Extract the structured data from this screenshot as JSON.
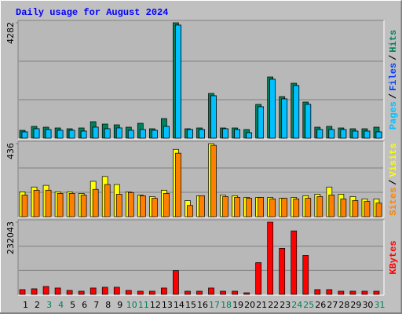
{
  "title": "Daily usage for August 2024",
  "legend_separator": "/",
  "chart_data": [
    {
      "type": "bar",
      "ylim": [
        0,
        4282
      ],
      "yticks": [
        4282
      ],
      "grid_divisions": 3,
      "series": [
        {
          "name": "Hits",
          "color": "#00805c",
          "values": [
            291,
            437,
            408,
            379,
            350,
            379,
            612,
            524,
            495,
            408,
            553,
            350,
            728,
            4282,
            350,
            379,
            1660,
            379,
            379,
            320,
            1253,
            2272,
            1544,
            2039,
            1340,
            408,
            437,
            379,
            350,
            350,
            408
          ]
        },
        {
          "name": "Files",
          "color": "#0040ff",
          "values": [
            233,
            350,
            320,
            291,
            291,
            262,
            408,
            350,
            379,
            291,
            320,
            291,
            437,
            4195,
            320,
            320,
            1573,
            350,
            320,
            204,
            1165,
            2185,
            1457,
            1952,
            1253,
            320,
            320,
            320,
            262,
            262,
            233
          ]
        },
        {
          "name": "Pages",
          "color": "#00c0ff",
          "values": [
            233,
            350,
            320,
            291,
            291,
            262,
            408,
            350,
            379,
            291,
            320,
            291,
            437,
            4195,
            320,
            320,
            1573,
            350,
            320,
            204,
            1165,
            2185,
            1457,
            1952,
            1253,
            320,
            320,
            320,
            262,
            262,
            233
          ]
        }
      ]
    },
    {
      "type": "bar",
      "ylim": [
        0,
        436
      ],
      "yticks": [
        436
      ],
      "grid_divisions": 3,
      "series": [
        {
          "name": "Visits",
          "color": "#ffff00",
          "values": [
            148,
            177,
            187,
            148,
            148,
            139,
            211,
            240,
            192,
            148,
            129,
            120,
            158,
            402,
            96,
            125,
            436,
            129,
            125,
            115,
            115,
            115,
            110,
            115,
            125,
            134,
            177,
            134,
            120,
            106,
            106
          ]
        },
        {
          "name": "Sites",
          "color": "#ff8000",
          "values": [
            129,
            158,
            158,
            139,
            139,
            129,
            163,
            192,
            134,
            144,
            125,
            110,
            139,
            379,
            67,
            125,
            426,
            120,
            115,
            110,
            115,
            106,
            110,
            106,
            110,
            120,
            129,
            106,
            96,
            91,
            81
          ]
        }
      ]
    },
    {
      "type": "bar",
      "ylim": [
        0,
        232043
      ],
      "yticks": [
        232043
      ],
      "grid_divisions": 3,
      "categories": [
        "1",
        "2",
        "3",
        "4",
        "5",
        "6",
        "7",
        "8",
        "9",
        "10",
        "11",
        "12",
        "13",
        "14",
        "15",
        "16",
        "17",
        "18",
        "19",
        "20",
        "21",
        "22",
        "23",
        "24",
        "25",
        "26",
        "27",
        "28",
        "29",
        "30",
        "31"
      ],
      "category_colors": [
        "#000000",
        "#000000",
        "#00805c",
        "#00805c",
        "#000000",
        "#000000",
        "#000000",
        "#000000",
        "#000000",
        "#00805c",
        "#00805c",
        "#000000",
        "#000000",
        "#000000",
        "#000000",
        "#000000",
        "#00805c",
        "#00805c",
        "#000000",
        "#000000",
        "#000000",
        "#000000",
        "#000000",
        "#00805c",
        "#00805c",
        "#000000",
        "#000000",
        "#000000",
        "#000000",
        "#000000",
        "#00805c"
      ],
      "series": [
        {
          "name": "KBytes",
          "color": "#ff0000",
          "values": [
            15300,
            17850,
            25500,
            20400,
            12750,
            10200,
            20400,
            22950,
            22950,
            12750,
            10200,
            10200,
            20400,
            76500,
            10200,
            10200,
            20400,
            10200,
            10200,
            5100,
            102000,
            232043,
            147900,
            204000,
            124950,
            15300,
            15300,
            10200,
            10200,
            10200,
            10200
          ]
        }
      ]
    }
  ]
}
